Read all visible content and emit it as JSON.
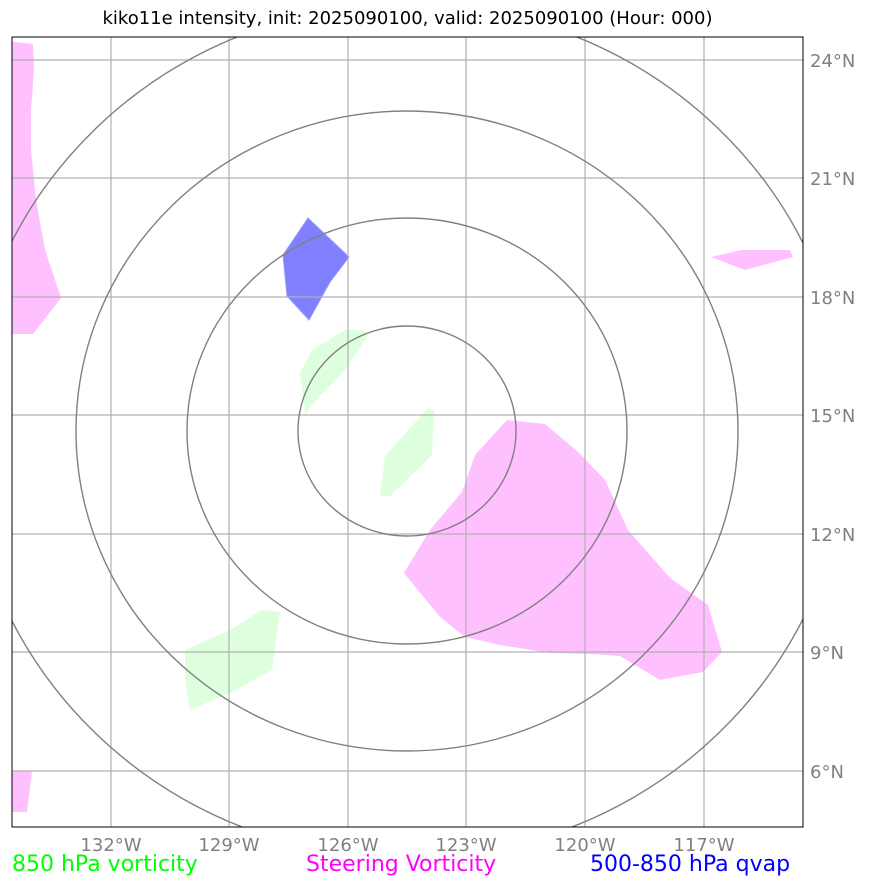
{
  "title": "kiko11e intensity, init: 2025090100, valid: 2025090100 (Hour: 000)",
  "lon_labels": [
    "132°W",
    "129°W",
    "126°W",
    "123°W",
    "120°W",
    "117°W"
  ],
  "lat_labels": [
    "24°N",
    "21°N",
    "18°N",
    "15°N",
    "12°N",
    "9°N",
    "6°N"
  ],
  "legend": {
    "vort850": {
      "label": "850 hPa vorticity",
      "color": "#00ff00"
    },
    "steering": {
      "label": "Steering Vorticity",
      "color": "#ff00ff"
    },
    "qvap": {
      "label": "500-850 hPa qvap",
      "color": "#0000ff"
    }
  },
  "colors": {
    "vort850_fill": "#ddffdd",
    "steering_fill": "#ffc0ff",
    "qvap_fill": "#8080ff",
    "gridline": "#b0b0b0",
    "range_ring": "#808080"
  }
}
